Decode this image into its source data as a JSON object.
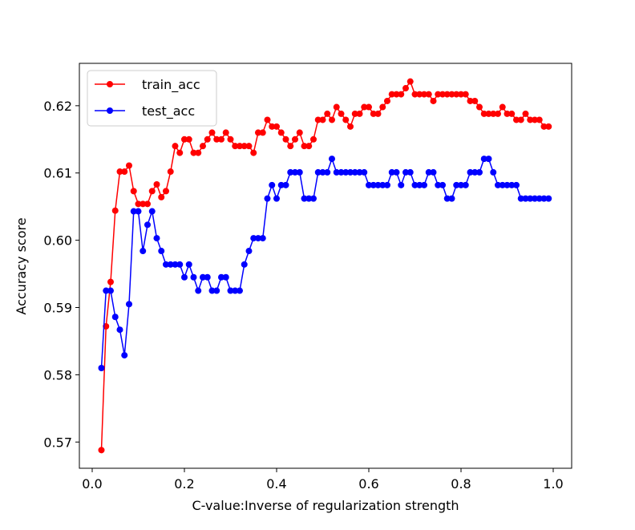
{
  "chart_data": {
    "type": "line",
    "xlabel": "C-value:Inverse of regularization strength",
    "ylabel": "Accuracy score",
    "x": [
      0.02,
      0.03,
      0.04,
      0.05,
      0.06,
      0.07,
      0.08,
      0.09,
      0.1,
      0.11,
      0.12,
      0.13,
      0.14,
      0.15,
      0.16,
      0.17,
      0.18,
      0.19,
      0.2,
      0.21,
      0.22,
      0.23,
      0.24,
      0.25,
      0.26,
      0.27,
      0.28,
      0.29,
      0.3,
      0.31,
      0.32,
      0.33,
      0.34,
      0.35,
      0.36,
      0.37,
      0.38,
      0.39,
      0.4,
      0.41,
      0.42,
      0.43,
      0.44,
      0.45,
      0.46,
      0.47,
      0.48,
      0.49,
      0.5,
      0.51,
      0.52,
      0.53,
      0.54,
      0.55,
      0.56,
      0.57,
      0.58,
      0.59,
      0.6,
      0.61,
      0.62,
      0.63,
      0.64,
      0.65,
      0.66,
      0.67,
      0.68,
      0.69,
      0.7,
      0.71,
      0.72,
      0.73,
      0.74,
      0.75,
      0.76,
      0.77,
      0.78,
      0.79,
      0.8,
      0.81,
      0.82,
      0.83,
      0.84,
      0.85,
      0.86,
      0.87,
      0.88,
      0.89,
      0.9,
      0.91,
      0.92,
      0.93,
      0.94,
      0.95,
      0.96,
      0.97,
      0.98,
      0.99
    ],
    "series": [
      {
        "name": "train_acc",
        "color": "#ff0000",
        "values": [
          0.5688,
          0.5872,
          0.5938,
          0.6044,
          0.6102,
          0.6102,
          0.6111,
          0.6073,
          0.6054,
          0.6054,
          0.6054,
          0.6073,
          0.6083,
          0.6064,
          0.6073,
          0.6102,
          0.614,
          0.613,
          0.615,
          0.615,
          0.613,
          0.613,
          0.614,
          0.615,
          0.616,
          0.615,
          0.615,
          0.616,
          0.615,
          0.614,
          0.614,
          0.614,
          0.614,
          0.613,
          0.616,
          0.616,
          0.6179,
          0.6169,
          0.6169,
          0.616,
          0.615,
          0.614,
          0.615,
          0.616,
          0.614,
          0.614,
          0.615,
          0.6179,
          0.6179,
          0.6188,
          0.6179,
          0.6198,
          0.6188,
          0.6179,
          0.6169,
          0.6188,
          0.6188,
          0.6198,
          0.6198,
          0.6188,
          0.6188,
          0.6198,
          0.6207,
          0.6217,
          0.6217,
          0.6217,
          0.6226,
          0.6236,
          0.6217,
          0.6217,
          0.6217,
          0.6217,
          0.6207,
          0.6217,
          0.6217,
          0.6217,
          0.6217,
          0.6217,
          0.6217,
          0.6217,
          0.6207,
          0.6207,
          0.6198,
          0.6188,
          0.6188,
          0.6188,
          0.6188,
          0.6198,
          0.6188,
          0.6188,
          0.6179,
          0.6179,
          0.6188,
          0.6179,
          0.6179,
          0.6179,
          0.6169,
          0.6169
        ]
      },
      {
        "name": "test_acc",
        "color": "#0000ff",
        "values": [
          0.581,
          0.5925,
          0.5925,
          0.5886,
          0.5867,
          0.5829,
          0.5905,
          0.6043,
          0.6043,
          0.5984,
          0.6023,
          0.6043,
          0.6003,
          0.5984,
          0.5964,
          0.5964,
          0.5964,
          0.5964,
          0.5945,
          0.5964,
          0.5945,
          0.5925,
          0.5945,
          0.5945,
          0.5925,
          0.5925,
          0.5945,
          0.5945,
          0.5925,
          0.5925,
          0.5925,
          0.5964,
          0.5984,
          0.6003,
          0.6003,
          0.6003,
          0.6062,
          0.6082,
          0.6062,
          0.6082,
          0.6082,
          0.6101,
          0.6101,
          0.6101,
          0.6062,
          0.6062,
          0.6062,
          0.6101,
          0.6101,
          0.6101,
          0.6121,
          0.6101,
          0.6101,
          0.6101,
          0.6101,
          0.6101,
          0.6101,
          0.6101,
          0.6082,
          0.6082,
          0.6082,
          0.6082,
          0.6082,
          0.6101,
          0.6101,
          0.6082,
          0.6101,
          0.6101,
          0.6082,
          0.6082,
          0.6082,
          0.6101,
          0.6101,
          0.6082,
          0.6082,
          0.6062,
          0.6062,
          0.6082,
          0.6082,
          0.6082,
          0.6101,
          0.6101,
          0.6101,
          0.6121,
          0.6121,
          0.6101,
          0.6082,
          0.6082,
          0.6082,
          0.6082,
          0.6082,
          0.6062,
          0.6062,
          0.6062,
          0.6062,
          0.6062,
          0.6062,
          0.6062
        ]
      }
    ],
    "xlim": [
      -0.0278,
      1.04
    ],
    "ylim": [
      0.5661,
      0.6263
    ],
    "xticks": [
      {
        "value": 0,
        "label": "0.0"
      },
      0.2,
      0.4,
      0.6,
      0.8,
      {
        "value": 1,
        "label": "1.0"
      }
    ],
    "yticks": [
      0.57,
      0.58,
      0.59,
      {
        "value": 0.6,
        "label": "0.60"
      },
      0.61,
      0.62
    ],
    "legend": "upper left",
    "grid": false,
    "markers": true
  }
}
